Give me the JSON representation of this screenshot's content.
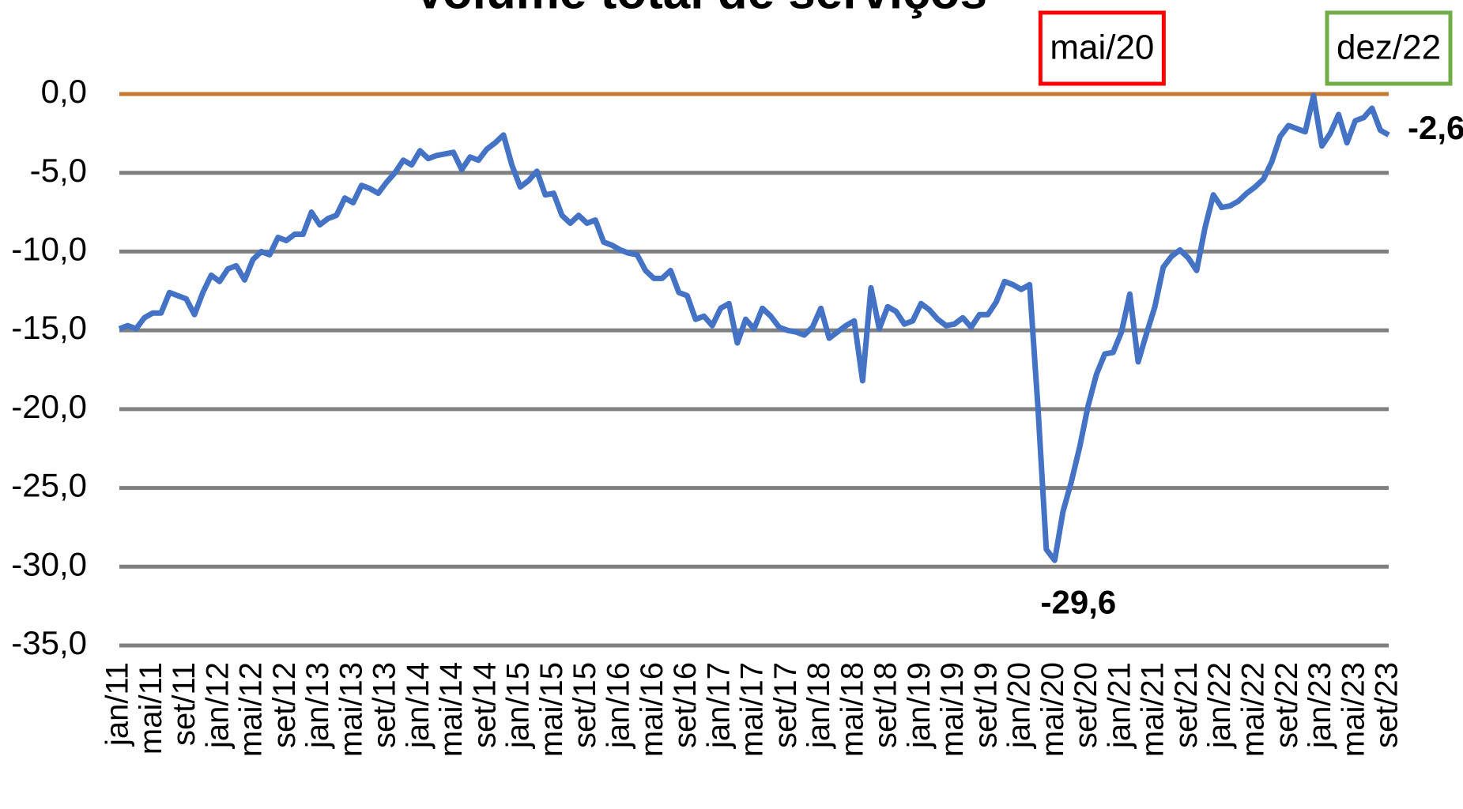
{
  "chart_data": {
    "type": "line",
    "title": "Volume total de serviços",
    "categories": [
      "jan/11",
      null,
      null,
      null,
      "mai/11",
      null,
      null,
      null,
      "set/11",
      null,
      null,
      null,
      "jan/12",
      null,
      null,
      null,
      "mai/12",
      null,
      null,
      null,
      "set/12",
      null,
      null,
      null,
      "jan/13",
      null,
      null,
      null,
      "mai/13",
      null,
      null,
      null,
      "set/13",
      null,
      null,
      null,
      "jan/14",
      null,
      null,
      null,
      "mai/14",
      null,
      null,
      null,
      "set/14",
      null,
      null,
      null,
      "jan/15",
      null,
      null,
      null,
      "mai/15",
      null,
      null,
      null,
      "set/15",
      null,
      null,
      null,
      "jan/16",
      null,
      null,
      null,
      "mai/16",
      null,
      null,
      null,
      "set/16",
      null,
      null,
      null,
      "jan/17",
      null,
      null,
      null,
      "mai/17",
      null,
      null,
      null,
      "set/17",
      null,
      null,
      null,
      "jan/18",
      null,
      null,
      null,
      "mai/18",
      null,
      null,
      null,
      "set/18",
      null,
      null,
      null,
      "jan/19",
      null,
      null,
      null,
      "mai/19",
      null,
      null,
      null,
      "set/19",
      null,
      null,
      null,
      "jan/20",
      null,
      null,
      null,
      "mai/20",
      null,
      null,
      null,
      "set/20",
      null,
      null,
      null,
      "jan/21",
      null,
      null,
      null,
      "mai/21",
      null,
      null,
      null,
      "set/21",
      null,
      null,
      null,
      "jan/22",
      null,
      null,
      null,
      "mai/22",
      null,
      null,
      null,
      "set/22",
      null,
      null,
      null,
      "jan/23",
      null,
      null,
      null,
      "mai/23",
      null,
      null,
      null,
      "set/23"
    ],
    "series": [
      {
        "name": "Volume total de serviços",
        "color": "#4472c4",
        "values": [
          -14.9,
          -14.7,
          -14.9,
          -14.2,
          -13.9,
          -13.9,
          -12.6,
          -12.8,
          -13.0,
          -14.0,
          -12.6,
          -11.5,
          -11.9,
          -11.1,
          -10.9,
          -11.8,
          -10.5,
          -10.0,
          -10.2,
          -9.1,
          -9.3,
          -8.9,
          -8.9,
          -7.5,
          -8.3,
          -7.9,
          -7.7,
          -6.6,
          -6.9,
          -5.8,
          -6.0,
          -6.3,
          -5.6,
          -5.0,
          -4.2,
          -4.5,
          -3.6,
          -4.1,
          -3.9,
          -3.8,
          -3.7,
          -4.8,
          -4.0,
          -4.2,
          -3.5,
          -3.1,
          -2.6,
          -4.5,
          -5.9,
          -5.5,
          -4.9,
          -6.4,
          -6.3,
          -7.7,
          -8.2,
          -7.7,
          -8.2,
          -8.0,
          -9.4,
          -9.6,
          -9.9,
          -10.1,
          -10.2,
          -11.2,
          -11.7,
          -11.7,
          -11.2,
          -12.6,
          -12.8,
          -14.3,
          -14.1,
          -14.7,
          -13.6,
          -13.3,
          -15.8,
          -14.3,
          -14.9,
          -13.6,
          -14.1,
          -14.8,
          -15.0,
          -15.1,
          -15.3,
          -14.8,
          -13.6,
          -15.5,
          -15.1,
          -14.7,
          -14.4,
          -18.2,
          -12.3,
          -14.9,
          -13.5,
          -13.8,
          -14.6,
          -14.4,
          -13.3,
          -13.7,
          -14.3,
          -14.7,
          -14.6,
          -14.2,
          -14.8,
          -14.0,
          -14.0,
          -13.2,
          -11.9,
          -12.1,
          -12.4,
          -12.1,
          -19.9,
          -28.9,
          -29.6,
          -26.5,
          -24.6,
          -22.4,
          -19.8,
          -17.8,
          -16.5,
          -16.4,
          -15.1,
          -12.7,
          -17.0,
          -15.2,
          -13.5,
          -11.0,
          -10.3,
          -9.9,
          -10.4,
          -11.2,
          -8.5,
          -6.4,
          -7.2,
          -7.1,
          -6.8,
          -6.3,
          -5.9,
          -5.4,
          -4.3,
          -2.7,
          -2.0,
          -2.2,
          -2.4,
          -0.1,
          -3.3,
          -2.5,
          -1.3,
          -3.1,
          -1.7,
          -1.5,
          -0.9,
          -2.3,
          -2.6
        ],
        "value_labels": [
          null,
          null,
          null,
          null,
          null,
          null,
          null,
          null,
          null,
          null,
          null,
          null,
          null,
          null,
          null,
          null,
          null,
          null,
          null,
          null,
          null,
          null,
          null,
          null,
          null,
          null,
          null,
          null,
          null,
          null,
          null,
          null,
          null,
          null,
          null,
          null,
          null,
          null,
          null,
          null,
          null,
          null,
          null,
          null,
          null,
          null,
          null,
          null,
          null,
          null,
          null,
          null,
          null,
          null,
          null,
          null,
          null,
          null,
          null,
          null,
          null,
          null,
          null,
          null,
          null,
          null,
          null,
          null,
          null,
          null,
          null,
          null,
          null,
          null,
          null,
          null,
          null,
          null,
          null,
          null,
          null,
          null,
          null,
          null,
          null,
          null,
          null,
          null,
          null,
          null,
          null,
          null,
          null,
          null,
          null,
          null,
          null,
          null,
          null,
          null,
          null,
          null,
          null,
          null,
          null,
          null,
          null,
          null,
          null,
          null,
          null,
          null,
          "-29,6",
          null,
          null,
          null,
          null,
          null,
          null,
          null,
          null,
          null,
          null,
          null,
          null,
          null,
          null,
          null,
          null,
          null,
          null,
          null,
          null,
          null,
          null,
          null,
          null,
          null,
          null,
          null,
          null,
          null,
          null,
          null,
          null,
          null,
          null,
          null,
          null,
          null,
          null,
          null,
          "-2,6"
        ],
        "value_label_color": "#ff0000"
      }
    ],
    "ylim": [
      -35,
      0
    ],
    "yticks": [
      {
        "value": -35,
        "label": "-35,0"
      },
      {
        "value": -30,
        "label": "-30,0"
      },
      {
        "value": -25,
        "label": "-25,0"
      },
      {
        "value": -20,
        "label": "-20,0"
      },
      {
        "value": -15,
        "label": "-15,0"
      },
      {
        "value": -10,
        "label": "-10,0"
      },
      {
        "value": -5,
        "label": "-5,0"
      },
      {
        "value": 0,
        "label": "0,0"
      }
    ],
    "grid": true,
    "grid_color": "#808080",
    "zero_line_color": "#c5782f",
    "annotations": [
      {
        "text": "mai/20",
        "color": "#ff0000"
      },
      {
        "text": "dez/22",
        "color": "#70ad47"
      }
    ]
  }
}
